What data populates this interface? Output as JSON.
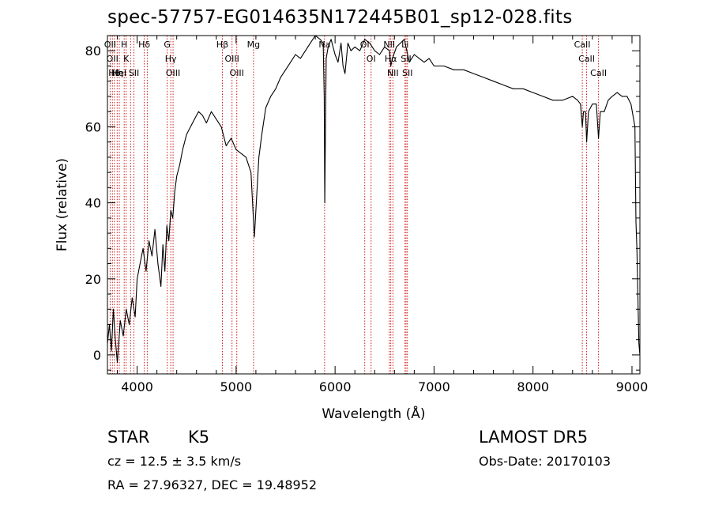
{
  "title": "spec-57757-EG014635N172445B01_sp12-028.fits",
  "chart_data": {
    "type": "line",
    "title": "spec-57757-EG014635N172445B01_sp12-028.fits",
    "xlabel": "Wavelength (Å)",
    "ylabel": "Flux (relative)",
    "xlim": [
      3700,
      9080
    ],
    "ylim": [
      -5,
      84
    ],
    "grid": false,
    "x_ticks": [
      4000,
      5000,
      6000,
      7000,
      8000,
      9000
    ],
    "y_ticks": [
      0,
      20,
      40,
      60,
      80
    ],
    "series": [
      {
        "x": [
          3700,
          3720,
          3740,
          3760,
          3780,
          3800,
          3830,
          3860,
          3890,
          3920,
          3950,
          3980,
          4000,
          4030,
          4060,
          4090,
          4120,
          4150,
          4180,
          4210,
          4240,
          4260,
          4280,
          4300,
          4320,
          4340,
          4360,
          4380,
          4400,
          4430,
          4460,
          4500,
          4540,
          4580,
          4620,
          4660,
          4700,
          4750,
          4800,
          4850,
          4900,
          4950,
          5000,
          5050,
          5100,
          5150,
          5170,
          5185,
          5200,
          5230,
          5260,
          5300,
          5350,
          5400,
          5450,
          5500,
          5550,
          5600,
          5650,
          5700,
          5750,
          5800,
          5850,
          5880,
          5890,
          5896,
          5902,
          5910,
          5930,
          5960,
          6000,
          6030,
          6060,
          6080,
          6100,
          6130,
          6160,
          6200,
          6250,
          6300,
          6350,
          6400,
          6450,
          6500,
          6550,
          6563,
          6580,
          6620,
          6660,
          6700,
          6750,
          6800,
          6850,
          6900,
          6950,
          7000,
          7100,
          7200,
          7300,
          7400,
          7500,
          7600,
          7700,
          7800,
          7900,
          8000,
          8100,
          8200,
          8300,
          8400,
          8450,
          8480,
          8498,
          8510,
          8530,
          8542,
          8560,
          8600,
          8640,
          8662,
          8680,
          8720,
          8760,
          8800,
          8850,
          8900,
          8950,
          8990,
          9010,
          9030,
          9040,
          9050,
          9070,
          9080
        ],
        "values": [
          3,
          8,
          1,
          12,
          4,
          -2,
          9,
          5,
          12,
          8,
          15,
          10,
          20,
          24,
          28,
          22,
          30,
          26,
          33,
          24,
          18,
          29,
          22,
          34,
          30,
          38,
          36,
          43,
          47,
          50,
          54,
          58,
          60,
          62,
          64,
          63,
          61,
          64,
          62,
          60,
          55,
          57,
          54,
          53,
          52,
          48,
          38,
          31,
          38,
          52,
          58,
          65,
          68,
          70,
          73,
          75,
          77,
          79,
          78,
          80,
          82,
          84,
          83,
          82,
          68,
          40,
          58,
          78,
          81,
          83,
          79,
          77,
          82,
          76,
          74,
          82,
          80,
          81,
          80,
          83,
          82,
          80,
          79,
          81,
          80,
          76,
          78,
          81,
          82,
          83,
          77,
          79,
          78,
          77,
          78,
          76,
          76,
          75,
          75,
          74,
          73,
          72,
          71,
          70,
          70,
          69,
          68,
          67,
          67,
          68,
          67,
          66,
          60,
          64,
          64,
          56,
          64,
          66,
          66,
          57,
          64,
          64,
          67,
          68,
          69,
          68,
          68,
          66,
          63,
          60,
          35,
          28,
          3,
          0
        ]
      }
    ],
    "annotations": {
      "lines": [
        {
          "x": 3727,
          "labels": [
            "OII"
          ]
        },
        {
          "x": 3750,
          "labels": [
            "OII"
          ]
        },
        {
          "x": 3770,
          "labels": [
            "Hθ"
          ]
        },
        {
          "x": 3798,
          "labels": [
            "Hη"
          ]
        },
        {
          "x": 3820,
          "labels": [
            "HeI"
          ]
        },
        {
          "x": 3869,
          "labels": [
            "H"
          ]
        },
        {
          "x": 3889,
          "labels": [
            "K"
          ]
        },
        {
          "x": 3934,
          "labels": []
        },
        {
          "x": 3968,
          "labels": [
            "SII"
          ]
        },
        {
          "x": 4072,
          "labels": [
            "Hδ"
          ]
        },
        {
          "x": 4102,
          "labels": []
        },
        {
          "x": 4304,
          "labels": [
            "G"
          ]
        },
        {
          "x": 4340,
          "labels": [
            "Hγ"
          ]
        },
        {
          "x": 4363,
          "labels": [
            "OIII"
          ]
        },
        {
          "x": 4861,
          "labels": [
            "Hβ"
          ]
        },
        {
          "x": 4959,
          "labels": [
            "OIII"
          ]
        },
        {
          "x": 5007,
          "labels": [
            "OIII"
          ]
        },
        {
          "x": 5176,
          "labels": [
            "Mg"
          ]
        },
        {
          "x": 5894,
          "labels": [
            "Na"
          ]
        },
        {
          "x": 6300,
          "labels": [
            "OI"
          ]
        },
        {
          "x": 6364,
          "labels": [
            "OI"
          ]
        },
        {
          "x": 6548,
          "labels": [
            "NII"
          ]
        },
        {
          "x": 6563,
          "labels": [
            "Hα"
          ]
        },
        {
          "x": 6584,
          "labels": [
            "NII"
          ]
        },
        {
          "x": 6707,
          "labels": [
            "Li"
          ]
        },
        {
          "x": 6717,
          "labels": [
            "SII"
          ]
        },
        {
          "x": 6731,
          "labels": [
            "SII"
          ]
        },
        {
          "x": 8498,
          "labels": [
            "CaII"
          ]
        },
        {
          "x": 8542,
          "labels": [
            "CaII"
          ]
        },
        {
          "x": 8662,
          "labels": [
            "CaII"
          ]
        }
      ]
    }
  },
  "info": {
    "class": "STAR",
    "subclass": "K5",
    "survey": "LAMOST DR5",
    "redshift": "cz = 12.5 ± 3.5 km/s",
    "obs_date": "Obs-Date: 20170103",
    "coords": "RA =  27.96327, DEC =  19.48952"
  },
  "colors": {
    "spectrum": "#000000",
    "line_markers": "#cc0000",
    "axes": "#000000",
    "background": "#ffffff"
  }
}
